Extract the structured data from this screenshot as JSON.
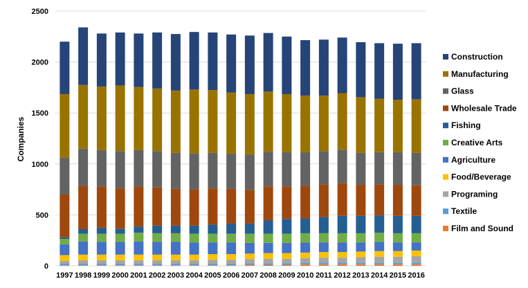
{
  "chart_data": {
    "type": "bar",
    "stacked": true,
    "title": "",
    "xlabel": "",
    "ylabel": "Companies",
    "ylim": [
      0,
      2500
    ],
    "yticks": [
      0,
      500,
      1000,
      1500,
      2000,
      2500
    ],
    "grid": true,
    "legend_position": "right",
    "categories": [
      "1997",
      "1998",
      "1999",
      "2000",
      "2001",
      "2002",
      "2003",
      "2004",
      "2005",
      "2006",
      "2007",
      "2008",
      "2009",
      "2010",
      "2011",
      "2012",
      "2013",
      "2014",
      "2015",
      "2016"
    ],
    "series": [
      {
        "name": "Film and Sound",
        "color": "#ed7d31",
        "values": [
          5,
          5,
          5,
          5,
          5,
          5,
          5,
          5,
          5,
          5,
          10,
          10,
          10,
          15,
          15,
          15,
          15,
          15,
          15,
          15
        ]
      },
      {
        "name": "Textile",
        "color": "#5b9bd5",
        "values": [
          15,
          15,
          15,
          15,
          15,
          15,
          15,
          15,
          15,
          15,
          15,
          15,
          15,
          15,
          15,
          15,
          15,
          15,
          15,
          15
        ]
      },
      {
        "name": "Programing",
        "color": "#a5a5a5",
        "values": [
          30,
          35,
          35,
          35,
          35,
          35,
          35,
          35,
          40,
          40,
          40,
          45,
          45,
          45,
          50,
          50,
          55,
          60,
          60,
          65
        ]
      },
      {
        "name": "Food/Beverage",
        "color": "#ffc000",
        "values": [
          55,
          55,
          55,
          55,
          55,
          55,
          55,
          55,
          55,
          55,
          55,
          55,
          55,
          55,
          55,
          55,
          55,
          55,
          55,
          55
        ]
      },
      {
        "name": "Agriculture",
        "color": "#4472c4",
        "values": [
          105,
          130,
          125,
          125,
          130,
          125,
          125,
          120,
          115,
          115,
          105,
          100,
          100,
          100,
          95,
          95,
          90,
          90,
          85,
          80
        ]
      },
      {
        "name": "Creative Arts",
        "color": "#70ad47",
        "values": [
          55,
          75,
          80,
          80,
          85,
          85,
          85,
          85,
          85,
          85,
          90,
          90,
          90,
          90,
          90,
          90,
          90,
          90,
          90,
          90
        ]
      },
      {
        "name": "Fishing",
        "color": "#255e91",
        "values": [
          15,
          45,
          60,
          50,
          60,
          75,
          75,
          80,
          90,
          100,
          100,
          130,
          145,
          145,
          160,
          170,
          170,
          170,
          170,
          170
        ]
      },
      {
        "name": "Wholesale Trade",
        "color": "#9e480e",
        "values": [
          420,
          425,
          405,
          395,
          390,
          375,
          360,
          355,
          355,
          340,
          330,
          335,
          320,
          320,
          320,
          320,
          305,
          305,
          305,
          300
        ]
      },
      {
        "name": "Glass",
        "color": "#636363",
        "values": [
          360,
          365,
          355,
          365,
          360,
          355,
          355,
          355,
          350,
          345,
          345,
          340,
          335,
          330,
          325,
          330,
          315,
          315,
          320,
          320
        ]
      },
      {
        "name": "Manufacturing",
        "color": "#997300",
        "values": [
          625,
          625,
          625,
          645,
          620,
          615,
          610,
          625,
          615,
          600,
          595,
          590,
          570,
          555,
          545,
          555,
          545,
          525,
          515,
          525
        ]
      },
      {
        "name": "Construction",
        "color": "#264478",
        "values": [
          515,
          565,
          520,
          520,
          525,
          550,
          555,
          565,
          565,
          570,
          575,
          575,
          565,
          545,
          550,
          545,
          540,
          545,
          550,
          550
        ]
      }
    ]
  }
}
